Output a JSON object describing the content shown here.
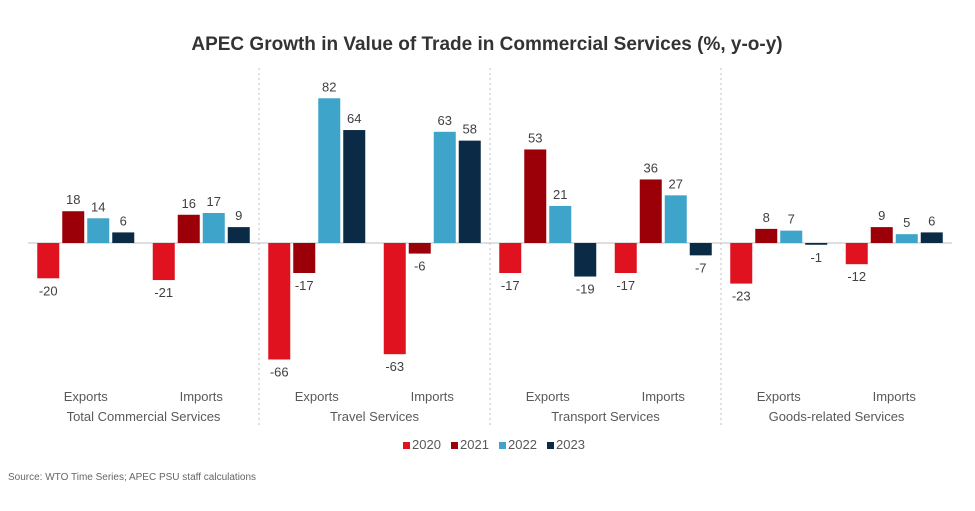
{
  "chart_data": {
    "type": "bar",
    "title": "APEC Growth in Value of Trade in Commercial Services (%, y-o-y)",
    "xlabel": "",
    "ylabel": "",
    "ylim": [
      -70,
      90
    ],
    "grid": false,
    "legend_position": "bottom-center",
    "groups": [
      {
        "name": "Total Commercial Services",
        "categories": [
          "Exports",
          "Imports"
        ]
      },
      {
        "name": "Travel Services",
        "categories": [
          "Exports",
          "Imports"
        ]
      },
      {
        "name": "Transport Services",
        "categories": [
          "Exports",
          "Imports"
        ]
      },
      {
        "name": "Goods-related Services",
        "categories": [
          "Exports",
          "Imports"
        ]
      }
    ],
    "categories": [
      "Total Commercial Services - Exports",
      "Total Commercial Services - Imports",
      "Travel Services - Exports",
      "Travel Services - Imports",
      "Transport Services - Exports",
      "Transport Services - Imports",
      "Goods-related Services - Exports",
      "Goods-related Services - Imports"
    ],
    "series": [
      {
        "name": "2020",
        "color": "#e0121f",
        "values": [
          -20,
          -21,
          -66,
          -63,
          -17,
          -17,
          -23,
          -12
        ]
      },
      {
        "name": "2021",
        "color": "#9b0008",
        "values": [
          18,
          16,
          -17,
          -6,
          53,
          36,
          8,
          9
        ]
      },
      {
        "name": "2022",
        "color": "#3fa4c9",
        "values": [
          14,
          17,
          82,
          63,
          21,
          27,
          7,
          5
        ]
      },
      {
        "name": "2023",
        "color": "#0b2a45",
        "values": [
          6,
          9,
          64,
          58,
          -19,
          -7,
          -1,
          6
        ]
      }
    ],
    "source": "Source: WTO Time Series; APEC PSU staff calculations"
  }
}
